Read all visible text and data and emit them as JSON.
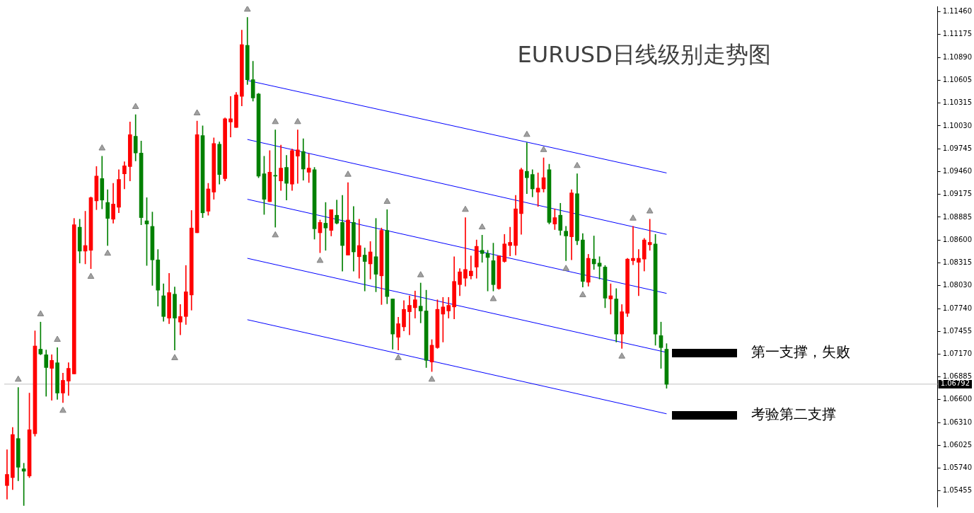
{
  "chart_data": {
    "type": "candlestick",
    "title": "EURUSD日线级别走势图",
    "categories": [
      null,
      null,
      null,
      null,
      null,
      null,
      null,
      null,
      null,
      null,
      null,
      null,
      null,
      null,
      null,
      null,
      null,
      null,
      null,
      null,
      null,
      null,
      null,
      null,
      null,
      null,
      null,
      null,
      null,
      null,
      null,
      null,
      null,
      null,
      null,
      null,
      null,
      null,
      null,
      null,
      null,
      null,
      null,
      null,
      null,
      null,
      null,
      null,
      null,
      null,
      null,
      null,
      null,
      null,
      null,
      null,
      null,
      null,
      null,
      null,
      null,
      null,
      null,
      null,
      null,
      null,
      null,
      null,
      null,
      null,
      null,
      null,
      null,
      null,
      null,
      null,
      null,
      null,
      null,
      null,
      null,
      null,
      null,
      null,
      null,
      null,
      null,
      null,
      null,
      null,
      null,
      null,
      null,
      null,
      null,
      null,
      null,
      null,
      null,
      null,
      null,
      null,
      null,
      null,
      null,
      null,
      null,
      null,
      null,
      null,
      null,
      null,
      null,
      null,
      null,
      null,
      null,
      null,
      null,
      null,
      null,
      null,
      null,
      null,
      null,
      null,
      null,
      null,
      null,
      null,
      null,
      null,
      null,
      null,
      null,
      null,
      null,
      null,
      null,
      null,
      null,
      null,
      null,
      null,
      null,
      null,
      null,
      null,
      null,
      null,
      null,
      null,
      null,
      null,
      null,
      null,
      null,
      null,
      null,
      null,
      null,
      null,
      null,
      null,
      null,
      null,
      null
    ],
    "ohlc": [
      [
        1.0552,
        1.0597,
        1.0535,
        1.0566
      ],
      [
        1.0562,
        1.0625,
        1.0547,
        1.0616
      ],
      [
        1.0611,
        1.0675,
        1.0558,
        1.0575
      ],
      [
        1.0573,
        1.058,
        1.0527,
        1.057
      ],
      [
        1.0564,
        1.0668,
        1.0562,
        1.0622
      ],
      [
        1.0617,
        1.0746,
        1.0614,
        1.0727
      ],
      [
        1.0723,
        1.0757,
        1.0716,
        1.0717
      ],
      [
        1.0716,
        1.0722,
        1.0664,
        1.07
      ],
      [
        1.0699,
        1.0716,
        1.0659,
        1.0709
      ],
      [
        1.0706,
        1.0725,
        1.066,
        1.0668
      ],
      [
        1.0668,
        1.0693,
        1.0656,
        1.0684
      ],
      [
        1.0683,
        1.0706,
        1.0665,
        1.0699
      ],
      [
        1.0692,
        1.0887,
        1.0692,
        1.0879
      ],
      [
        1.0876,
        1.0886,
        1.0831,
        1.0846
      ],
      [
        1.0846,
        1.0896,
        1.083,
        1.0853
      ],
      [
        1.0847,
        1.0914,
        1.0824,
        1.0913
      ],
      [
        1.0909,
        1.0952,
        1.0898,
        1.094
      ],
      [
        1.0937,
        1.0965,
        1.0899,
        1.091
      ],
      [
        1.0907,
        1.0923,
        1.0853,
        1.0887
      ],
      [
        1.0886,
        1.0931,
        1.0881,
        1.0905
      ],
      [
        1.0901,
        1.0948,
        1.0894,
        1.0936
      ],
      [
        1.0943,
        1.0958,
        1.0924,
        1.0953
      ],
      [
        1.0952,
        1.1008,
        1.0934,
        1.0992
      ],
      [
        1.099,
        1.1017,
        1.0959,
        1.0969
      ],
      [
        1.0969,
        1.0984,
        1.0879,
        1.0888
      ],
      [
        1.0884,
        1.0913,
        1.0828,
        1.088
      ],
      [
        1.0877,
        1.0895,
        1.0803,
        1.0835
      ],
      [
        1.0835,
        1.0848,
        1.0777,
        1.0797
      ],
      [
        1.079,
        1.0805,
        1.0758,
        1.0764
      ],
      [
        1.0762,
        1.0818,
        1.0755,
        1.0794
      ],
      [
        1.0792,
        1.0801,
        1.0722,
        1.0762
      ],
      [
        1.0757,
        1.0779,
        1.0741,
        1.0764
      ],
      [
        1.0764,
        1.0828,
        1.0754,
        1.0795
      ],
      [
        1.0791,
        1.0897,
        1.0772,
        1.0875
      ],
      [
        1.0869,
        1.1009,
        1.0869,
        1.0992
      ],
      [
        1.0991,
        1.1003,
        1.0888,
        1.0894
      ],
      [
        1.0896,
        1.0931,
        1.0891,
        1.0924
      ],
      [
        1.092,
        1.0988,
        1.0911,
        1.0981
      ],
      [
        1.098,
        1.0983,
        1.093,
        1.0942
      ],
      [
        1.0937,
        1.1013,
        1.0934,
        1.1012
      ],
      [
        1.1008,
        1.104,
        1.0989,
        1.1012
      ],
      [
        1.1001,
        1.1045,
        1.1001,
        1.1042
      ],
      [
        1.104,
        1.1123,
        1.1028,
        1.1105
      ],
      [
        1.1104,
        1.1139,
        1.1055,
        1.1061
      ],
      [
        1.1061,
        1.1084,
        1.1034,
        1.1038
      ],
      [
        1.1043,
        1.1044,
        1.0938,
        1.094
      ],
      [
        1.0943,
        1.0965,
        1.0892,
        1.0911
      ],
      [
        1.0908,
        1.0972,
        1.0908,
        1.0945
      ],
      [
        1.0941,
        1.0998,
        1.0876,
        1.094
      ],
      [
        1.0934,
        1.0979,
        1.0922,
        1.095
      ],
      [
        1.0951,
        1.0966,
        1.091,
        1.0931
      ],
      [
        1.093,
        1.0974,
        1.0922,
        1.0972
      ],
      [
        1.0965,
        1.0998,
        1.0931,
        1.0973
      ],
      [
        1.0971,
        1.0987,
        1.0935,
        1.0949
      ],
      [
        1.0945,
        1.0968,
        1.0932,
        1.095
      ],
      [
        1.0948,
        1.0951,
        1.0861,
        1.0874
      ],
      [
        1.0869,
        1.0885,
        1.0844,
        1.0882
      ],
      [
        1.0881,
        1.0907,
        1.0847,
        1.0875
      ],
      [
        1.0872,
        1.0898,
        1.0865,
        1.0898
      ],
      [
        1.0891,
        1.091,
        1.088,
        1.0881
      ],
      [
        1.0882,
        1.0916,
        1.0821,
        1.0853
      ],
      [
        1.0841,
        1.0932,
        1.0841,
        1.0885
      ],
      [
        1.0882,
        1.0902,
        1.0821,
        1.0845
      ],
      [
        1.0839,
        1.0886,
        1.0812,
        1.0853
      ],
      [
        1.0841,
        1.085,
        1.0796,
        1.0833
      ],
      [
        1.083,
        1.0858,
        1.0811,
        1.0845
      ],
      [
        1.0839,
        1.0887,
        1.0795,
        1.0817
      ],
      [
        1.0815,
        1.0875,
        1.0779,
        1.0872
      ],
      [
        1.0872,
        1.0898,
        1.078,
        1.0789
      ],
      [
        1.0786,
        1.0786,
        1.0723,
        1.0742
      ],
      [
        1.0738,
        1.0763,
        1.0722,
        1.0755
      ],
      [
        1.0751,
        1.0784,
        1.0746,
        1.0773
      ],
      [
        1.077,
        1.079,
        1.0741,
        1.0778
      ],
      [
        1.0775,
        1.0796,
        1.0762,
        1.0785
      ],
      [
        1.0777,
        1.0806,
        1.0756,
        1.0771
      ],
      [
        1.0771,
        1.0797,
        1.07,
        1.0709
      ],
      [
        1.0707,
        1.0735,
        1.0695,
        1.0728
      ],
      [
        1.0725,
        1.0785,
        1.0724,
        1.0773
      ],
      [
        1.0767,
        1.0788,
        1.0732,
        1.0776
      ],
      [
        1.0771,
        1.0788,
        1.0762,
        1.0778
      ],
      [
        1.0776,
        1.0839,
        1.0761,
        1.0808
      ],
      [
        1.0804,
        1.0824,
        1.079,
        1.082
      ],
      [
        1.0812,
        1.0888,
        1.0802,
        1.0823
      ],
      [
        1.0815,
        1.084,
        1.0811,
        1.0821
      ],
      [
        1.0826,
        1.086,
        1.0812,
        1.0852
      ],
      [
        1.0847,
        1.0866,
        1.0832,
        1.0843
      ],
      [
        1.0843,
        1.0847,
        1.0796,
        1.0838
      ],
      [
        1.0834,
        1.0856,
        1.0796,
        1.0804
      ],
      [
        1.0799,
        1.084,
        1.0798,
        1.084
      ],
      [
        1.0833,
        1.0867,
        1.0832,
        1.0855
      ],
      [
        1.0853,
        1.0876,
        1.084,
        1.0857
      ],
      [
        1.0853,
        1.0916,
        1.0841,
        1.0899
      ],
      [
        1.0893,
        1.095,
        1.0867,
        1.0948
      ],
      [
        1.0946,
        1.0982,
        1.0918,
        1.0938
      ],
      [
        1.0942,
        1.0948,
        1.0914,
        1.0924
      ],
      [
        1.092,
        1.0944,
        1.0902,
        1.0925
      ],
      [
        1.0924,
        1.0963,
        1.092,
        1.0938
      ],
      [
        1.0948,
        1.0955,
        1.088,
        1.0882
      ],
      [
        1.088,
        1.0899,
        1.0873,
        1.0888
      ],
      [
        1.0891,
        1.0906,
        1.0866,
        1.0872
      ],
      [
        1.0871,
        1.0877,
        1.0834,
        1.0865
      ],
      [
        1.0864,
        1.0923,
        1.0835,
        1.0919
      ],
      [
        1.0918,
        1.0943,
        1.0854,
        1.0859
      ],
      [
        1.086,
        1.0868,
        1.0801,
        1.0808
      ],
      [
        1.0807,
        1.0842,
        1.0802,
        1.0837
      ],
      [
        1.0836,
        1.0865,
        1.0823,
        1.083
      ],
      [
        1.0831,
        1.0839,
        1.0811,
        1.0827
      ],
      [
        1.0826,
        1.0828,
        1.0775,
        1.0787
      ],
      [
        1.0786,
        1.0805,
        1.0767,
        1.079
      ],
      [
        1.0786,
        1.0799,
        1.0732,
        1.0742
      ],
      [
        1.0742,
        1.0779,
        1.0724,
        1.077
      ],
      [
        1.0768,
        1.0837,
        1.0764,
        1.0836
      ],
      [
        1.0834,
        1.0877,
        1.0829,
        1.0837
      ],
      [
        1.0832,
        1.0848,
        1.079,
        1.0837
      ],
      [
        1.0836,
        1.0862,
        1.0821,
        1.086
      ],
      [
        1.0854,
        1.0886,
        1.0847,
        1.0857
      ],
      [
        1.0855,
        1.0867,
        1.0728,
        1.0742
      ],
      [
        1.074,
        1.0757,
        1.0699,
        1.0725
      ],
      [
        1.0723,
        1.073,
        1.0674,
        1.0679
      ],
      null,
      null,
      null,
      null,
      null,
      null,
      null,
      null,
      null,
      null,
      null,
      null,
      null,
      null,
      null,
      null,
      null,
      null,
      null,
      null,
      null,
      null,
      null,
      null,
      null,
      null,
      null,
      null,
      null,
      null,
      null,
      null,
      null,
      null,
      null,
      null,
      null,
      null,
      null,
      null,
      null,
      null,
      null,
      null,
      null,
      null,
      null,
      null
    ],
    "colors": [
      "#ff0000",
      "#ff0000",
      "#008000",
      "#008000",
      "#ff0000",
      "#ff0000",
      "#008000",
      "#008000",
      "#ff0000",
      "#008000",
      "#ff0000",
      "#ff0000",
      "#ff0000",
      "#008000",
      "#ff0000",
      "#ff0000",
      "#ff0000",
      "#008000",
      "#008000",
      "#ff0000",
      "#ff0000",
      "#ff0000",
      "#ff0000",
      "#008000",
      "#008000",
      "#008000",
      "#008000",
      "#008000",
      "#008000",
      "#ff0000",
      "#008000",
      "#ff0000",
      "#ff0000",
      "#ff0000",
      "#ff0000",
      "#008000",
      "#ff0000",
      "#ff0000",
      "#008000",
      "#ff0000",
      "#ff0000",
      "#ff0000",
      "#ff0000",
      "#008000",
      "#008000",
      "#008000",
      "#008000",
      "#ff0000",
      "#008000",
      "#ff0000",
      "#008000",
      "#ff0000",
      "#ff0000",
      "#008000",
      "#ff0000",
      "#008000",
      "#ff0000",
      "#008000",
      "#ff0000",
      "#008000",
      "#008000",
      "#ff0000",
      "#008000",
      "#ff0000",
      "#008000",
      "#ff0000",
      "#008000",
      "#ff0000",
      "#008000",
      "#008000",
      "#ff0000",
      "#ff0000",
      "#ff0000",
      "#ff0000",
      "#008000",
      "#008000",
      "#ff0000",
      "#ff0000",
      "#ff0000",
      "#ff0000",
      "#ff0000",
      "#ff0000",
      "#ff0000",
      "#ff0000",
      "#ff0000",
      "#008000",
      "#008000",
      "#008000",
      "#ff0000",
      "#ff0000",
      "#ff0000",
      "#ff0000",
      "#ff0000",
      "#008000",
      "#008000",
      "#ff0000",
      "#ff0000",
      "#008000",
      "#ff0000",
      "#008000",
      "#008000",
      "#ff0000",
      "#008000",
      "#008000",
      "#ff0000",
      "#008000",
      "#008000",
      "#008000",
      "#ff0000",
      "#008000",
      "#ff0000",
      "#ff0000",
      "#ff0000",
      "#ff0000",
      "#ff0000",
      "#ff0000",
      "#008000",
      "#008000",
      "#008000",
      null,
      null,
      null,
      null,
      null,
      null,
      null,
      null,
      null,
      null,
      null,
      null,
      null,
      null,
      null,
      null,
      null,
      null,
      null,
      null,
      null,
      null,
      null,
      null,
      null,
      null,
      null,
      null,
      null,
      null,
      null,
      null,
      null,
      null,
      null,
      null,
      null,
      null,
      null,
      null,
      null,
      null,
      null,
      null,
      null,
      null,
      null,
      null
    ],
    "series": [
      {
        "type": "line",
        "color": "#0000ff",
        "values": [
          null,
          null,
          null,
          null,
          null,
          null,
          null,
          null,
          null,
          null,
          null,
          null,
          null,
          null,
          null,
          null,
          null,
          null,
          null,
          null,
          null,
          null,
          null,
          null,
          null,
          null,
          null,
          null,
          null,
          null,
          null,
          null,
          null,
          null,
          null,
          null,
          null,
          null,
          null,
          null,
          null,
          null,
          null,
          1.106,
          null,
          null,
          null,
          null,
          null,
          null,
          null,
          null,
          null,
          null,
          null,
          null,
          null,
          null,
          null,
          null,
          null,
          null,
          null,
          null,
          null,
          null,
          null,
          null,
          null,
          null,
          null,
          null,
          null,
          null,
          null,
          null,
          null,
          null,
          null,
          null,
          null,
          null,
          null,
          null,
          null,
          null,
          null,
          null,
          null,
          null,
          null,
          null,
          null,
          null,
          null,
          null,
          null,
          null,
          null,
          null,
          null,
          null,
          null,
          null,
          null,
          null,
          null,
          null,
          null,
          null,
          null,
          null,
          null,
          null,
          null,
          null,
          null,
          null,
          1.0944,
          null,
          null,
          null,
          null,
          null,
          null,
          null,
          null,
          null,
          null,
          null,
          null,
          null,
          null,
          null,
          null,
          null,
          null,
          null,
          null,
          null,
          null,
          null,
          null,
          null,
          null,
          null,
          null,
          null,
          null,
          null,
          null,
          null,
          null,
          null,
          null,
          null,
          null,
          null,
          null,
          null,
          null,
          null,
          null,
          null,
          null,
          null,
          null
        ]
      },
      {
        "type": "line",
        "color": "#0000ff",
        "values": [
          null,
          null,
          null,
          null,
          null,
          null,
          null,
          null,
          null,
          null,
          null,
          null,
          null,
          null,
          null,
          null,
          null,
          null,
          null,
          null,
          null,
          null,
          null,
          null,
          null,
          null,
          null,
          null,
          null,
          null,
          null,
          null,
          null,
          null,
          null,
          null,
          null,
          null,
          null,
          null,
          null,
          null,
          null,
          1.0986,
          null,
          null,
          null,
          null,
          null,
          null,
          null,
          null,
          null,
          null,
          null,
          null,
          null,
          null,
          null,
          null,
          null,
          null,
          null,
          null,
          null,
          null,
          null,
          null,
          null,
          null,
          null,
          null,
          null,
          null,
          null,
          null,
          null,
          null,
          null,
          null,
          null,
          null,
          null,
          null,
          null,
          null,
          null,
          null,
          null,
          null,
          null,
          null,
          null,
          null,
          null,
          null,
          null,
          null,
          null,
          null,
          null,
          null,
          null,
          null,
          null,
          null,
          null,
          null,
          null,
          null,
          null,
          null,
          null,
          null,
          null,
          null,
          null,
          null,
          1.0867,
          null,
          null,
          null,
          null,
          null,
          null,
          null,
          null,
          null,
          null,
          null,
          null,
          null,
          null,
          null,
          null,
          null,
          null,
          null,
          null,
          null,
          null,
          null,
          null,
          null,
          null,
          null,
          null,
          null,
          null,
          null,
          null,
          null,
          null,
          null,
          null,
          null,
          null,
          null,
          null,
          null,
          null,
          null,
          null,
          null,
          null,
          null,
          null
        ]
      },
      {
        "type": "line",
        "color": "#0000ff",
        "values": [
          null,
          null,
          null,
          null,
          null,
          null,
          null,
          null,
          null,
          null,
          null,
          null,
          null,
          null,
          null,
          null,
          null,
          null,
          null,
          null,
          null,
          null,
          null,
          null,
          null,
          null,
          null,
          null,
          null,
          null,
          null,
          null,
          null,
          null,
          null,
          null,
          null,
          null,
          null,
          null,
          null,
          null,
          null,
          1.0911,
          null,
          null,
          null,
          null,
          null,
          null,
          null,
          null,
          null,
          null,
          null,
          null,
          null,
          null,
          null,
          null,
          null,
          null,
          null,
          null,
          null,
          null,
          null,
          null,
          null,
          null,
          null,
          null,
          null,
          null,
          null,
          null,
          null,
          null,
          null,
          null,
          null,
          null,
          null,
          null,
          null,
          null,
          null,
          null,
          null,
          null,
          null,
          null,
          null,
          null,
          null,
          null,
          null,
          null,
          null,
          null,
          null,
          null,
          null,
          null,
          null,
          null,
          null,
          null,
          null,
          null,
          null,
          null,
          null,
          null,
          null,
          null,
          null,
          null,
          1.0793,
          null,
          null,
          null,
          null,
          null,
          null,
          null,
          null,
          null,
          null,
          null,
          null,
          null,
          null,
          null,
          null,
          null,
          null,
          null,
          null,
          null,
          null,
          null,
          null,
          null,
          null,
          null,
          null,
          null,
          null,
          null,
          null,
          null,
          null,
          null,
          null,
          null,
          null,
          null,
          null,
          null,
          null,
          null,
          null,
          null,
          null,
          null,
          null
        ]
      },
      {
        "type": "line",
        "color": "#0000ff",
        "values": [
          null,
          null,
          null,
          null,
          null,
          null,
          null,
          null,
          null,
          null,
          null,
          null,
          null,
          null,
          null,
          null,
          null,
          null,
          null,
          null,
          null,
          null,
          null,
          null,
          null,
          null,
          null,
          null,
          null,
          null,
          null,
          null,
          null,
          null,
          null,
          null,
          null,
          null,
          null,
          null,
          null,
          null,
          null,
          1.0837,
          null,
          null,
          null,
          null,
          null,
          null,
          null,
          null,
          null,
          null,
          null,
          null,
          null,
          null,
          null,
          null,
          null,
          null,
          null,
          null,
          null,
          null,
          null,
          null,
          null,
          null,
          null,
          null,
          null,
          null,
          null,
          null,
          null,
          null,
          null,
          null,
          null,
          null,
          null,
          null,
          null,
          null,
          null,
          null,
          null,
          null,
          null,
          null,
          null,
          null,
          null,
          null,
          null,
          null,
          null,
          null,
          null,
          null,
          null,
          null,
          null,
          null,
          null,
          null,
          null,
          null,
          null,
          null,
          null,
          null,
          null,
          null,
          null,
          null,
          1.0719,
          null,
          null,
          null,
          null,
          null,
          null,
          null,
          null,
          null,
          null,
          null,
          null,
          null,
          null,
          null,
          null,
          null,
          null,
          null,
          null,
          null,
          null,
          null,
          null,
          null,
          null,
          null,
          null,
          null,
          null,
          null,
          null,
          null,
          null,
          null,
          null,
          null,
          null,
          null,
          null,
          null,
          null,
          null,
          null,
          null,
          null,
          null,
          null
        ]
      },
      {
        "type": "line",
        "color": "#0000ff",
        "values": [
          null,
          null,
          null,
          null,
          null,
          null,
          null,
          null,
          null,
          null,
          null,
          null,
          null,
          null,
          null,
          null,
          null,
          null,
          null,
          null,
          null,
          null,
          null,
          null,
          null,
          null,
          null,
          null,
          null,
          null,
          null,
          null,
          null,
          null,
          null,
          null,
          null,
          null,
          null,
          null,
          null,
          null,
          null,
          1.076,
          null,
          null,
          null,
          null,
          null,
          null,
          null,
          null,
          null,
          null,
          null,
          null,
          null,
          null,
          null,
          null,
          null,
          null,
          null,
          null,
          null,
          null,
          null,
          null,
          null,
          null,
          null,
          null,
          null,
          null,
          null,
          null,
          null,
          null,
          null,
          null,
          null,
          null,
          null,
          null,
          null,
          null,
          null,
          null,
          null,
          null,
          null,
          null,
          null,
          null,
          null,
          null,
          null,
          null,
          null,
          null,
          null,
          null,
          null,
          null,
          null,
          null,
          null,
          null,
          null,
          null,
          null,
          null,
          null,
          null,
          null,
          null,
          null,
          null,
          1.0642,
          null,
          null,
          null,
          null,
          null,
          null,
          null,
          null,
          null,
          null,
          null,
          null,
          null,
          null,
          null,
          null,
          null,
          null,
          null,
          null,
          null,
          null,
          null,
          null,
          null,
          null,
          null,
          null,
          null,
          null,
          null,
          null,
          null,
          null,
          null,
          null,
          null,
          null,
          null,
          null,
          null,
          null,
          null,
          null,
          null,
          null,
          null,
          null
        ]
      },
      {
        "type": "scatter",
        "color": "#a0a0a0",
        "marker": "triangle",
        "values": [
          null,
          null,
          1.0685,
          null,
          null,
          null,
          1.0767,
          null,
          null,
          1.0735,
          null,
          null,
          null,
          null,
          null,
          null,
          null,
          1.0975,
          null,
          null,
          null,
          null,
          null,
          1.1027,
          null,
          null,
          null,
          null,
          null,
          null,
          null,
          null,
          null,
          null,
          1.1019,
          null,
          null,
          null,
          null,
          null,
          null,
          null,
          null,
          1.1149,
          null,
          null,
          null,
          null,
          1.1008,
          null,
          null,
          null,
          1.1008,
          null,
          null,
          null,
          null,
          null,
          null,
          null,
          null,
          1.0942,
          null,
          null,
          null,
          null,
          null,
          null,
          1.0908,
          null,
          null,
          null,
          null,
          null,
          1.0816,
          null,
          null,
          null,
          null,
          null,
          null,
          null,
          1.0898,
          null,
          null,
          1.0876,
          null,
          null,
          null,
          null,
          null,
          null,
          null,
          1.0992,
          null,
          null,
          1.0973,
          null,
          null,
          null,
          null,
          null,
          1.0953,
          null,
          null,
          null,
          null,
          null,
          null,
          null,
          null,
          null,
          1.0887,
          null,
          null,
          1.0896,
          null,
          null,
          null,
          null,
          null,
          null,
          null,
          null,
          null,
          null,
          null,
          null,
          null,
          null,
          null,
          null,
          null,
          null,
          null,
          null,
          null,
          null,
          null,
          null,
          null,
          null,
          null,
          null,
          null,
          null,
          null,
          null,
          null,
          null,
          null,
          null,
          null,
          null,
          null,
          null,
          null,
          null,
          null,
          null,
          null,
          null,
          null,
          null,
          null,
          null,
          null
        ]
      },
      {
        "type": "scatter",
        "color": "#a0a0a0",
        "marker": "triangle",
        "values": [
          null,
          null,
          null,
          null,
          null,
          null,
          null,
          null,
          null,
          null,
          1.0646,
          null,
          null,
          null,
          null,
          1.0814,
          null,
          null,
          1.0843,
          null,
          null,
          null,
          null,
          null,
          null,
          null,
          null,
          null,
          null,
          null,
          1.0712,
          null,
          null,
          null,
          null,
          null,
          null,
          null,
          null,
          null,
          null,
          null,
          null,
          null,
          null,
          null,
          null,
          null,
          1.0866,
          null,
          null,
          null,
          null,
          null,
          null,
          null,
          1.0834,
          null,
          null,
          null,
          null,
          null,
          null,
          null,
          null,
          null,
          null,
          null,
          null,
          null,
          1.0712,
          null,
          null,
          null,
          null,
          null,
          1.0685,
          null,
          null,
          null,
          null,
          null,
          null,
          null,
          null,
          null,
          null,
          1.0786,
          null,
          null,
          null,
          null,
          null,
          null,
          null,
          null,
          null,
          null,
          null,
          null,
          1.0824,
          null,
          null,
          1.0791,
          null,
          null,
          null,
          null,
          null,
          null,
          1.0714,
          null,
          null,
          null,
          null,
          null,
          null,
          null,
          null,
          null,
          null,
          null,
          null,
          null,
          null,
          null,
          null,
          null,
          null,
          null,
          null,
          null,
          null,
          null,
          null,
          null,
          null,
          null,
          null,
          null,
          null,
          null,
          null,
          null,
          null,
          null,
          null,
          null,
          null,
          null,
          null,
          null,
          null,
          null,
          null,
          null,
          null,
          null,
          null,
          null,
          null,
          null,
          null,
          null,
          null,
          null,
          null
        ]
      }
    ],
    "ylim": [
      1.05256,
      1.11529
    ],
    "yticks": [
      {
        "value": 1.05455,
        "label": "1.05455"
      },
      {
        "value": 1.0574,
        "label": "1.05740"
      },
      {
        "value": 1.06025,
        "label": "1.06025"
      },
      {
        "value": 1.0631,
        "label": "1.06310"
      },
      {
        "value": 1.066,
        "label": "1.06600"
      },
      {
        "value": 1.06885,
        "label": "1.06885"
      },
      {
        "value": 1.0717,
        "label": "1.07170"
      },
      {
        "value": 1.07455,
        "label": "1.07455"
      },
      {
        "value": 1.0774,
        "label": "1.07740"
      },
      {
        "value": 1.0803,
        "label": "1.08030"
      },
      {
        "value": 1.08315,
        "label": "1.08315"
      },
      {
        "value": 1.086,
        "label": "1.08600"
      },
      {
        "value": 1.08885,
        "label": "1.08885"
      },
      {
        "value": 1.09175,
        "label": "1.09175"
      },
      {
        "value": 1.0946,
        "label": "1.09460"
      },
      {
        "value": 1.09745,
        "label": "1.09745"
      },
      {
        "value": 1.1003,
        "label": "1.10030"
      },
      {
        "value": 1.10315,
        "label": "1.10315"
      },
      {
        "value": 1.10605,
        "label": "1.10605"
      },
      {
        "value": 1.1089,
        "label": "1.10890"
      },
      {
        "value": 1.11175,
        "label": "1.11175"
      },
      {
        "value": 1.1146,
        "label": "1.11460"
      }
    ],
    "tick_labels": "y",
    "ref_lines": [
      {
        "axis": "y",
        "value": 1.06792,
        "label": "1.06792",
        "color": "#c0c0c0"
      }
    ],
    "annotations": [
      "第一支撑，失败",
      "考验第二支撑"
    ]
  }
}
